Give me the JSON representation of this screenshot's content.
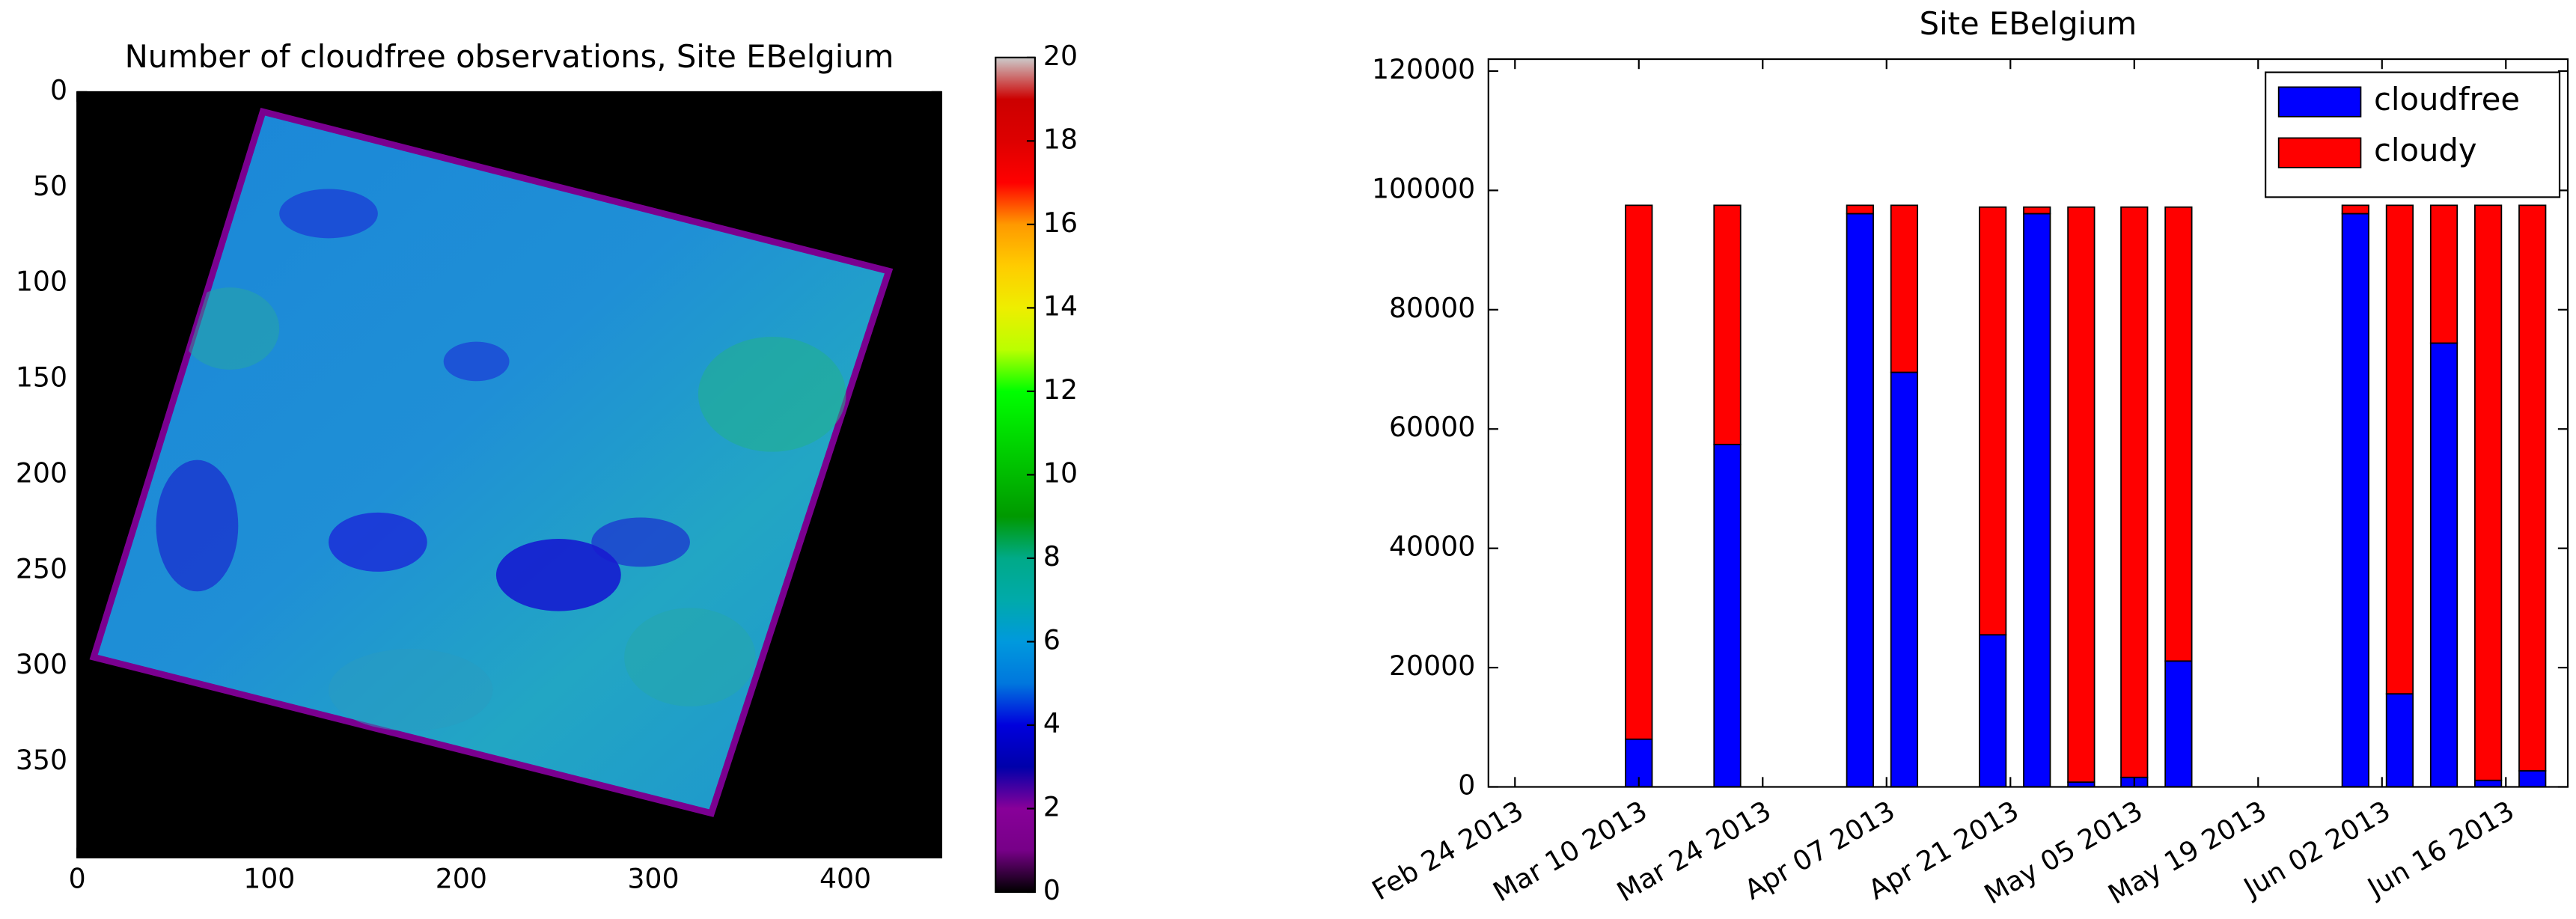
{
  "chart_data": [
    {
      "type": "heatmap",
      "title": "Number of cloudfree observations, Site EBelgium",
      "xlim": [
        0,
        450
      ],
      "ylim": [
        400,
        0
      ],
      "xticks": [
        0,
        100,
        200,
        300,
        400
      ],
      "yticks": [
        0,
        50,
        100,
        150,
        200,
        250,
        300,
        350
      ],
      "colorbar": {
        "lim": [
          0,
          20
        ],
        "ticks": [
          0,
          2,
          4,
          6,
          8,
          10,
          12,
          14,
          16,
          18,
          20
        ]
      }
    },
    {
      "type": "bar",
      "stacked": true,
      "title": "Site EBelgium",
      "x": [
        "2013-03-10",
        "2013-03-20",
        "2013-04-04",
        "2013-04-09",
        "2013-04-19",
        "2013-04-24",
        "2013-04-29",
        "2013-05-05",
        "2013-05-10",
        "2013-05-30",
        "2013-06-04",
        "2013-06-09",
        "2013-06-14",
        "2013-06-19"
      ],
      "series": [
        {
          "name": "cloudfree",
          "color": "#0000ff",
          "values": [
            8000,
            57400,
            96100,
            69500,
            25500,
            96100,
            800,
            1600,
            21100,
            96100,
            15600,
            74400,
            1100,
            2700
          ]
        },
        {
          "name": "cloudy",
          "color": "#ff0000",
          "values": [
            89500,
            40100,
            1400,
            28000,
            71700,
            1100,
            96400,
            95600,
            76100,
            1400,
            81900,
            23100,
            96400,
            94800
          ]
        }
      ],
      "xlim": [
        "2013-02-21",
        "2013-06-23"
      ],
      "xticks": [
        {
          "value": "2013-02-24",
          "label": "Feb 24 2013"
        },
        {
          "value": "2013-03-10",
          "label": "Mar 10 2013"
        },
        {
          "value": "2013-03-24",
          "label": "Mar 24 2013"
        },
        {
          "value": "2013-04-07",
          "label": "Apr 07 2013"
        },
        {
          "value": "2013-04-21",
          "label": "Apr 21 2013"
        },
        {
          "value": "2013-05-05",
          "label": "May 05 2013"
        },
        {
          "value": "2013-05-19",
          "label": "May 19 2013"
        },
        {
          "value": "2013-06-02",
          "label": "Jun 02 2013"
        },
        {
          "value": "2013-06-16",
          "label": "Jun 16 2013"
        }
      ],
      "ylim": [
        0,
        122000
      ],
      "yticks": [
        0,
        20000,
        40000,
        60000,
        80000,
        100000,
        120000
      ],
      "legend": "upper right"
    }
  ]
}
